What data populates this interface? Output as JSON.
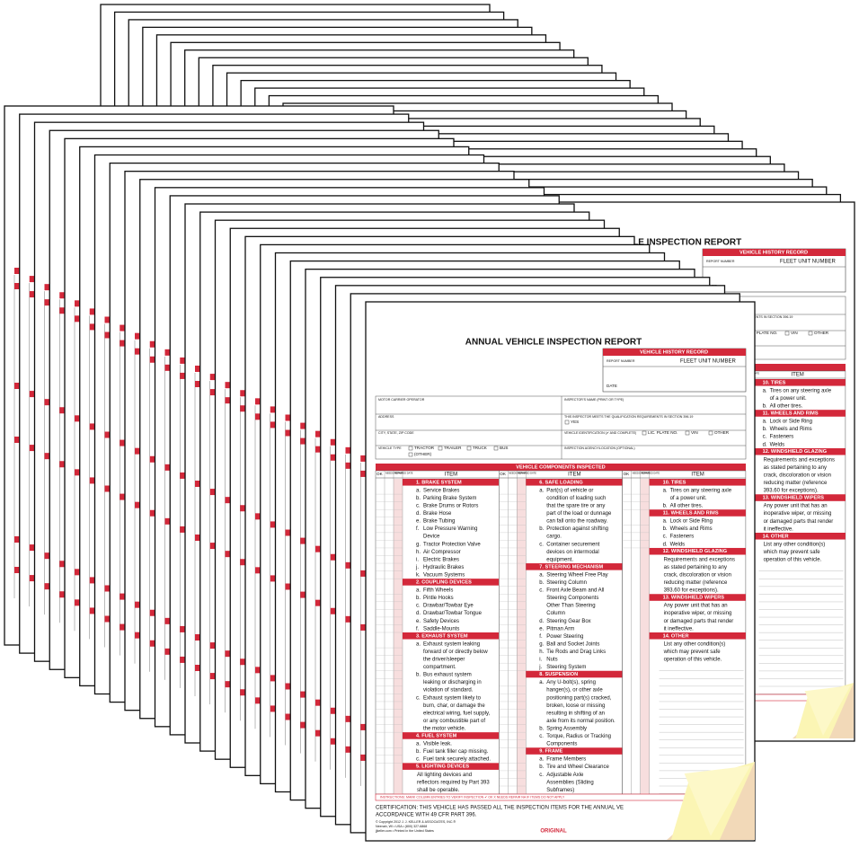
{
  "form": {
    "title": "ANNUAL VEHICLE INSPECTION REPORT",
    "history_header": "VEHICLE HISTORY RECORD",
    "report_number": "REPORT NUMBER",
    "fleet_unit": "FLEET UNIT NUMBER",
    "date": "DATE",
    "fields": {
      "carrier": "MOTOR CARRIER OPERATOR",
      "inspector": "INSPECTOR'S NAME (PRINT OR TYPE)",
      "address": "ADDRESS",
      "qualification": "THIS INSPECTOR MEETS THE QUALIFICATION REQUIREMENTS IN SECTION 396.19",
      "yes": "YES",
      "city": "CITY, STATE, ZIP CODE",
      "vehicle_id": "VEHICLE IDENTIFICATION (✔ AND COMPLETE)",
      "vehicle_id_options": [
        "LIC. PLATE NO.",
        "VIN",
        "OTHER"
      ],
      "vehicle_type": "VEHICLE TYPE",
      "vehicle_type_options": [
        "TRACTOR",
        "TRAILER",
        "TRUCK",
        "BUS",
        "(OTHER)"
      ],
      "agency": "INSPECTION AGENCY/LOCATION (OPTIONAL)"
    },
    "components_header": "VEHICLE COMPONENTS INSPECTED",
    "column_headers": [
      "OK",
      "NEEDS REPAIR",
      "REPAIRED DATE",
      "ITEM"
    ],
    "columns": [
      [
        {
          "title": "1. BRAKE SYSTEM",
          "items": [
            {
              "letter": "a.",
              "lines": [
                "Service Brakes"
              ]
            },
            {
              "letter": "b.",
              "lines": [
                "Parking Brake System"
              ]
            },
            {
              "letter": "c.",
              "lines": [
                "Brake Drums or Rotors"
              ]
            },
            {
              "letter": "d.",
              "lines": [
                "Brake Hose"
              ]
            },
            {
              "letter": "e.",
              "lines": [
                "Brake Tubing"
              ]
            },
            {
              "letter": "f.",
              "lines": [
                "Low Pressure Warning",
                "Device"
              ]
            },
            {
              "letter": "g.",
              "lines": [
                "Tractor Protection Valve"
              ]
            },
            {
              "letter": "h.",
              "lines": [
                "Air Compressor"
              ]
            },
            {
              "letter": "i.",
              "lines": [
                "Electric Brakes"
              ]
            },
            {
              "letter": "j.",
              "lines": [
                "Hydraulic Brakes"
              ]
            },
            {
              "letter": "k.",
              "lines": [
                "Vacuum Systems"
              ]
            }
          ]
        },
        {
          "title": "2. COUPLING DEVICES",
          "items": [
            {
              "letter": "a.",
              "lines": [
                "Fifth Wheels"
              ]
            },
            {
              "letter": "b.",
              "lines": [
                "Pintle Hooks"
              ]
            },
            {
              "letter": "c.",
              "lines": [
                "Drawbar/Towbar Eye"
              ]
            },
            {
              "letter": "d.",
              "lines": [
                "Drawbar/Towbar Tongue"
              ]
            },
            {
              "letter": "e.",
              "lines": [
                "Safety Devices"
              ]
            },
            {
              "letter": "f.",
              "lines": [
                "Saddle-Mounts"
              ]
            }
          ]
        },
        {
          "title": "3. EXHAUST SYSTEM",
          "items": [
            {
              "letter": "a.",
              "lines": [
                "Exhaust system leaking",
                "forward of or directly below",
                "the driver/sleeper",
                "compartment."
              ]
            },
            {
              "letter": "b.",
              "lines": [
                "Bus exhaust system",
                "leaking or discharging in",
                "violation of standard."
              ]
            },
            {
              "letter": "c.",
              "lines": [
                "Exhaust system likely to",
                "burn, char, or damage the",
                "electrical wiring, fuel supply,",
                "or any combustible part of",
                "the motor vehicle."
              ]
            }
          ]
        },
        {
          "title": "4. FUEL SYSTEM",
          "items": [
            {
              "letter": "a.",
              "lines": [
                "Visible leak."
              ]
            },
            {
              "letter": "b.",
              "lines": [
                "Fuel tank filler cap missing."
              ]
            },
            {
              "letter": "c.",
              "lines": [
                "Fuel tank securely attached."
              ]
            }
          ]
        },
        {
          "title": "5. LIGHTING DEVICES",
          "text": [
            "All lighting devices and",
            "reflectors required by Part 393",
            "shall be operable."
          ]
        }
      ],
      [
        {
          "title": "6. SAFE LOADING",
          "items": [
            {
              "letter": "a.",
              "lines": [
                "Part(s) of vehicle or",
                "condition of loading such",
                "that the spare tire or any",
                "part of the load or dunnage",
                "can fall onto the roadway."
              ]
            },
            {
              "letter": "b.",
              "lines": [
                "Protection against shifting",
                "cargo."
              ]
            },
            {
              "letter": "c.",
              "lines": [
                "Container securement",
                "devices on intermodal",
                "equipment."
              ]
            }
          ]
        },
        {
          "title": "7. STEERING MECHANISM",
          "items": [
            {
              "letter": "a.",
              "lines": [
                "Steering Wheel Free Play"
              ]
            },
            {
              "letter": "b.",
              "lines": [
                "Steering Column"
              ]
            },
            {
              "letter": "c.",
              "lines": [
                "Front Axle Beam and All",
                "Steering Components",
                "Other Than Steering",
                "Column"
              ]
            },
            {
              "letter": "d.",
              "lines": [
                "Steering Gear Box"
              ]
            },
            {
              "letter": "e.",
              "lines": [
                "Pitman Arm"
              ]
            },
            {
              "letter": "f.",
              "lines": [
                "Power Steering"
              ]
            },
            {
              "letter": "g.",
              "lines": [
                "Ball and Socket Joints"
              ]
            },
            {
              "letter": "h.",
              "lines": [
                "Tie Rods and Drag Links"
              ]
            },
            {
              "letter": "i.",
              "lines": [
                "Nuts"
              ]
            },
            {
              "letter": "j.",
              "lines": [
                "Steering System"
              ]
            }
          ]
        },
        {
          "title": "8. SUSPENSION",
          "items": [
            {
              "letter": "a.",
              "lines": [
                "Any U-bolt(s), spring",
                "hanger(s), or other axle",
                "positioning part(s) cracked,",
                "broken, loose or missing",
                "resulting in shifting of an",
                "axle from its normal position."
              ]
            },
            {
              "letter": "b.",
              "lines": [
                "Spring Assembly"
              ]
            },
            {
              "letter": "c.",
              "lines": [
                "Torque, Radius or Tracking",
                "Components"
              ]
            }
          ]
        },
        {
          "title": "9. FRAME",
          "items": [
            {
              "letter": "a.",
              "lines": [
                "Frame Members"
              ]
            },
            {
              "letter": "b.",
              "lines": [
                "Tire and Wheel Clearance"
              ]
            },
            {
              "letter": "c.",
              "lines": [
                "Adjustable Axle",
                "Assemblies (Sliding",
                "Subframes)"
              ]
            }
          ]
        }
      ],
      [
        {
          "title": "10. TIRES",
          "items": [
            {
              "letter": "a.",
              "lines": [
                "Tires on any steering axle",
                "of a power unit."
              ]
            },
            {
              "letter": "b.",
              "lines": [
                "All other tires."
              ]
            }
          ]
        },
        {
          "title": "11. WHEELS AND RIMS",
          "items": [
            {
              "letter": "a.",
              "lines": [
                "Lock or Side Ring"
              ]
            },
            {
              "letter": "b.",
              "lines": [
                "Wheels and Rims"
              ]
            },
            {
              "letter": "c.",
              "lines": [
                "Fasteners"
              ]
            },
            {
              "letter": "d.",
              "lines": [
                "Welds"
              ]
            }
          ]
        },
        {
          "title": "12. WINDSHIELD GLAZING",
          "text": [
            "Requirements and exceptions",
            "as stated pertaining to any",
            "crack, discoloration or vision",
            "reducing matter (reference",
            "393.60 for exceptions)."
          ]
        },
        {
          "title": "13. WINDSHIELD WIPERS",
          "text": [
            "Any power unit that has an",
            "inoperative wiper, or missing",
            "or damaged parts that render",
            "it ineffective."
          ]
        },
        {
          "title": "14. OTHER",
          "text": [
            "List any other condition(s)",
            "which may prevent safe",
            "operation of this vehicle."
          ]
        }
      ]
    ],
    "instructions": "INSTRUCTIONS: MARK COLUMN ENTRIES TO VERIFY INSPECTION   ✔  OK    X  NEEDS REPAIR    NA  IF ITEMS DO NOT APPLY",
    "certification": [
      "CERTIFICATION: THIS VEHICLE HAS PASSED ALL THE INSPECTION ITEMS FOR THE ANNUAL VE",
      "ACCORDANCE WITH 49 CFR PART 396."
    ],
    "copyright": [
      "© Copyright 2012 J. J. KELLER & ASSOCIATES, INC.®",
      "Neenah, WI • USA • (800) 327-6868",
      "jjkeller.com • Printed in the United States"
    ],
    "copy_label": "ORIGINAL"
  }
}
